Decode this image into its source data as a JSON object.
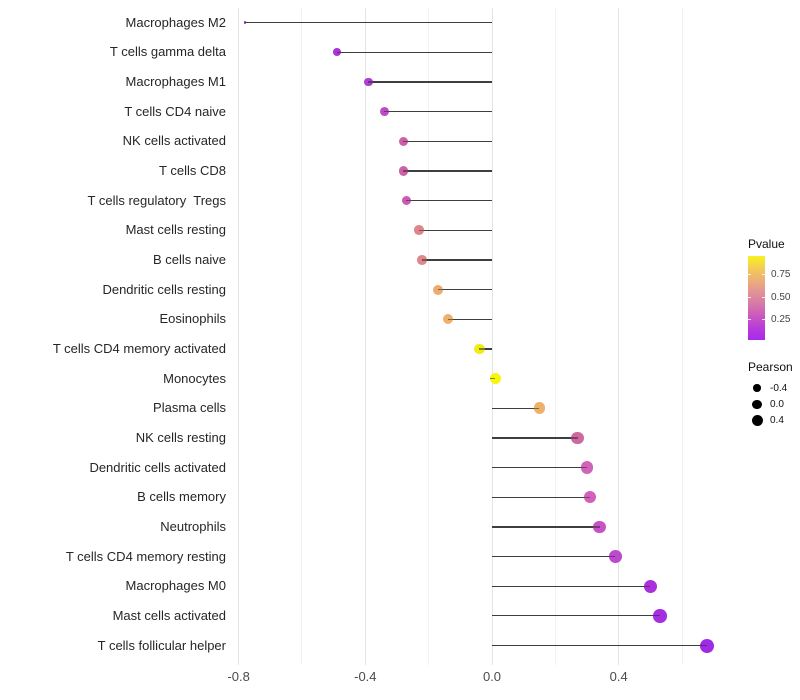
{
  "figure": {
    "background": "#ffffff"
  },
  "chart_data": {
    "type": "scatter",
    "variant": "lollipop",
    "title": "",
    "xlabel": "",
    "ylabel": "",
    "x_axis": {
      "major_ticks": [
        -0.8,
        -0.4,
        0.0,
        0.4
      ],
      "tick_labels": [
        "-0.8",
        "-0.4",
        "0.0",
        "0.4"
      ],
      "minor_ticks": [
        -0.6,
        -0.2,
        0.2,
        0.6
      ],
      "xlim": [
        -0.85,
        0.73
      ],
      "grid": "vertical-only"
    },
    "points": [
      {
        "label": "Macrophages M2",
        "pearson": -0.78,
        "color": "#8e2bc6"
      },
      {
        "label": "T cells gamma delta",
        "pearson": -0.49,
        "color": "#a935d6"
      },
      {
        "label": "Macrophages M1",
        "pearson": -0.39,
        "color": "#af3fd2"
      },
      {
        "label": "T cells CD4 naive",
        "pearson": -0.34,
        "color": "#bc4bc6"
      },
      {
        "label": "NK cells activated",
        "pearson": -0.28,
        "color": "#cd61a6"
      },
      {
        "label": "T cells CD8",
        "pearson": -0.28,
        "color": "#cd61a8"
      },
      {
        "label": "T cells regulatory  Tregs",
        "pearson": -0.27,
        "color": "#c95bb4"
      },
      {
        "label": "Mast cells resting",
        "pearson": -0.23,
        "color": "#de8689"
      },
      {
        "label": "B cells naive",
        "pearson": -0.22,
        "color": "#df888a"
      },
      {
        "label": "Dendritic cells resting",
        "pearson": -0.17,
        "color": "#ecac6f"
      },
      {
        "label": "Eosinophils",
        "pearson": -0.14,
        "color": "#eeb16d"
      },
      {
        "label": "T cells CD4 memory activated",
        "pearson": -0.04,
        "color": "#f2ec15"
      },
      {
        "label": "Monocytes",
        "pearson": 0.01,
        "color": "#f7f60c"
      },
      {
        "label": "Plasma cells",
        "pearson": 0.15,
        "color": "#edb168"
      },
      {
        "label": "NK cells resting",
        "pearson": 0.27,
        "color": "#cf689f"
      },
      {
        "label": "Dendritic cells activated",
        "pearson": 0.3,
        "color": "#d164b8"
      },
      {
        "label": "B cells memory",
        "pearson": 0.31,
        "color": "#d360bb"
      },
      {
        "label": "Neutrophils",
        "pearson": 0.34,
        "color": "#c951c8"
      },
      {
        "label": "T cells CD4 memory resting",
        "pearson": 0.39,
        "color": "#bd49cf"
      },
      {
        "label": "Macrophages M0",
        "pearson": 0.5,
        "color": "#a930dc"
      },
      {
        "label": "Mast cells activated",
        "pearson": 0.53,
        "color": "#a52fe0"
      },
      {
        "label": "T cells follicular helper",
        "pearson": 0.68,
        "color": "#9f2be5"
      }
    ],
    "legend": {
      "pvalue": {
        "title": "Pvalue",
        "tick_labels": [
          "0.75",
          "0.50",
          "0.25"
        ],
        "gradient_top_to_bottom": [
          "#f9f21d",
          "#f3cc55",
          "#ecb077",
          "#e29396",
          "#d878a8",
          "#ca58c0",
          "#b83bd9",
          "#a82aec"
        ]
      },
      "pearson": {
        "title": "Pearson",
        "items": [
          {
            "label": "-0.4",
            "diameter": 7.5
          },
          {
            "label": "0.0",
            "diameter": 9.5
          },
          {
            "label": "0.4",
            "diameter": 11
          }
        ]
      }
    },
    "style": {
      "stem_color": "#3e3e3e",
      "grid_major_color": "#e5e5e5",
      "grid_minor_color": "#f2f2f2",
      "axis_text_color": "#4b4b4b",
      "label_text_color": "#262626"
    }
  }
}
